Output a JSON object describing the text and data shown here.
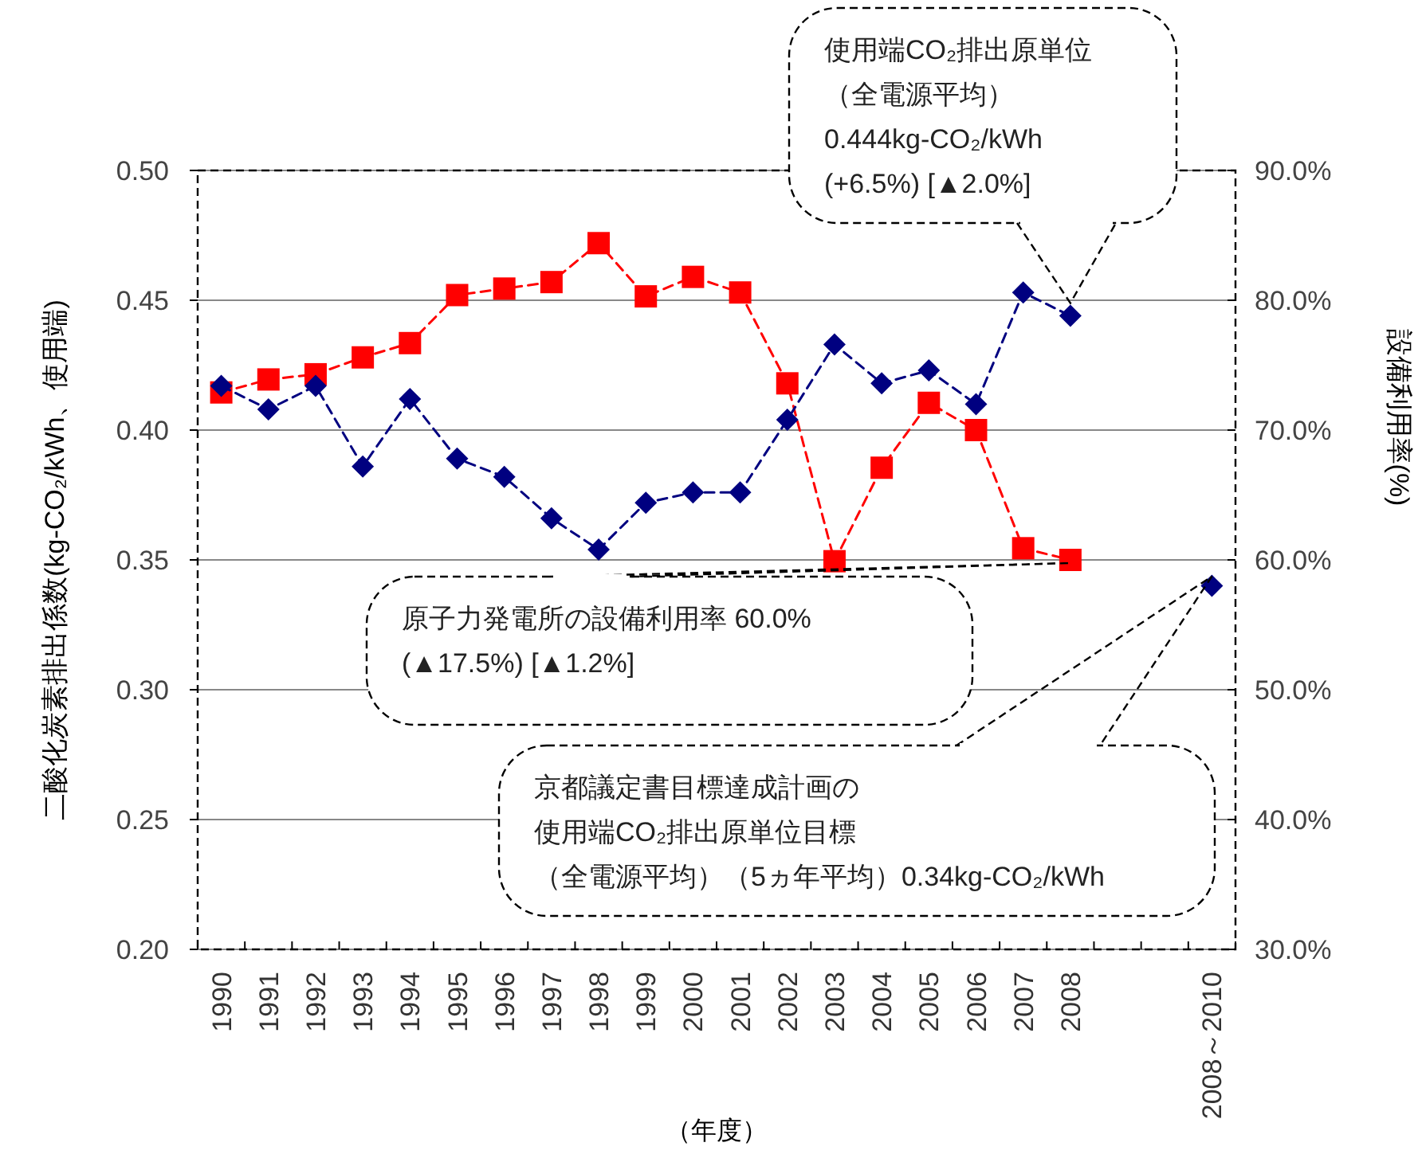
{
  "chart_data": {
    "type": "line",
    "xlabel": "（年度）",
    "ylabel": "二酸化炭素排出係数(kg-CO₂/kWh、使用端)",
    "y2label": "設備利用率(%)",
    "categories": [
      "1990",
      "1991",
      "1992",
      "1993",
      "1994",
      "1995",
      "1996",
      "1997",
      "1998",
      "1999",
      "2000",
      "2001",
      "2002",
      "2003",
      "2004",
      "2005",
      "2006",
      "2007",
      "2008",
      null,
      null,
      "2008～2010"
    ],
    "ylim": [
      0.2,
      0.5
    ],
    "yticks": [
      {
        "value": 0.2,
        "label": "0.20"
      },
      {
        "value": 0.25,
        "label": "0.25"
      },
      {
        "value": 0.3,
        "label": "0.30"
      },
      {
        "value": 0.35,
        "label": "0.35"
      },
      {
        "value": 0.4,
        "label": "0.40"
      },
      {
        "value": 0.45,
        "label": "0.45"
      },
      {
        "value": 0.5,
        "label": "0.50"
      }
    ],
    "y2lim": [
      30,
      90
    ],
    "y2ticks": [
      {
        "value": 30,
        "label": "30.0%"
      },
      {
        "value": 40,
        "label": "40.0%"
      },
      {
        "value": 50,
        "label": "50.0%"
      },
      {
        "value": 60,
        "label": "60.0%"
      },
      {
        "value": 70,
        "label": "70.0%"
      },
      {
        "value": 80,
        "label": "80.0%"
      },
      {
        "value": 90,
        "label": "90.0%"
      }
    ],
    "grid": "y",
    "line_style": "dashed",
    "series": [
      {
        "color": "#000080",
        "marker": "diamond",
        "values": [
          0.417,
          0.408,
          0.417,
          0.386,
          0.412,
          0.389,
          0.382,
          0.366,
          0.354,
          0.372,
          0.376,
          0.376,
          0.404,
          0.433,
          0.418,
          0.423,
          0.41,
          0.453,
          0.444,
          null,
          null,
          0.34
        ]
      },
      {
        "color": "#ff0000",
        "marker": "square",
        "axis": "y2",
        "values": [
          72.9,
          73.9,
          74.3,
          75.6,
          76.7,
          80.4,
          80.9,
          81.4,
          84.4,
          80.3,
          81.8,
          80.6,
          73.6,
          59.9,
          67.1,
          72.1,
          70.0,
          60.9,
          60.0,
          null,
          null,
          null
        ]
      }
    ],
    "annotations": [
      "使用端CO₂排出原単位",
      "（全電源平均）",
      "0.444kg-CO₂/kWh",
      "(+6.5%) [▲2.0%]",
      "原子力発電所の設備利用率  60.0%",
      "(▲17.5%) [▲1.2%]",
      "京都議定書目標達成計画の",
      "使用端CO₂排出原単位目標",
      "（全電源平均）（5ヵ年平均）0.34kg-CO₂/kWh"
    ]
  }
}
